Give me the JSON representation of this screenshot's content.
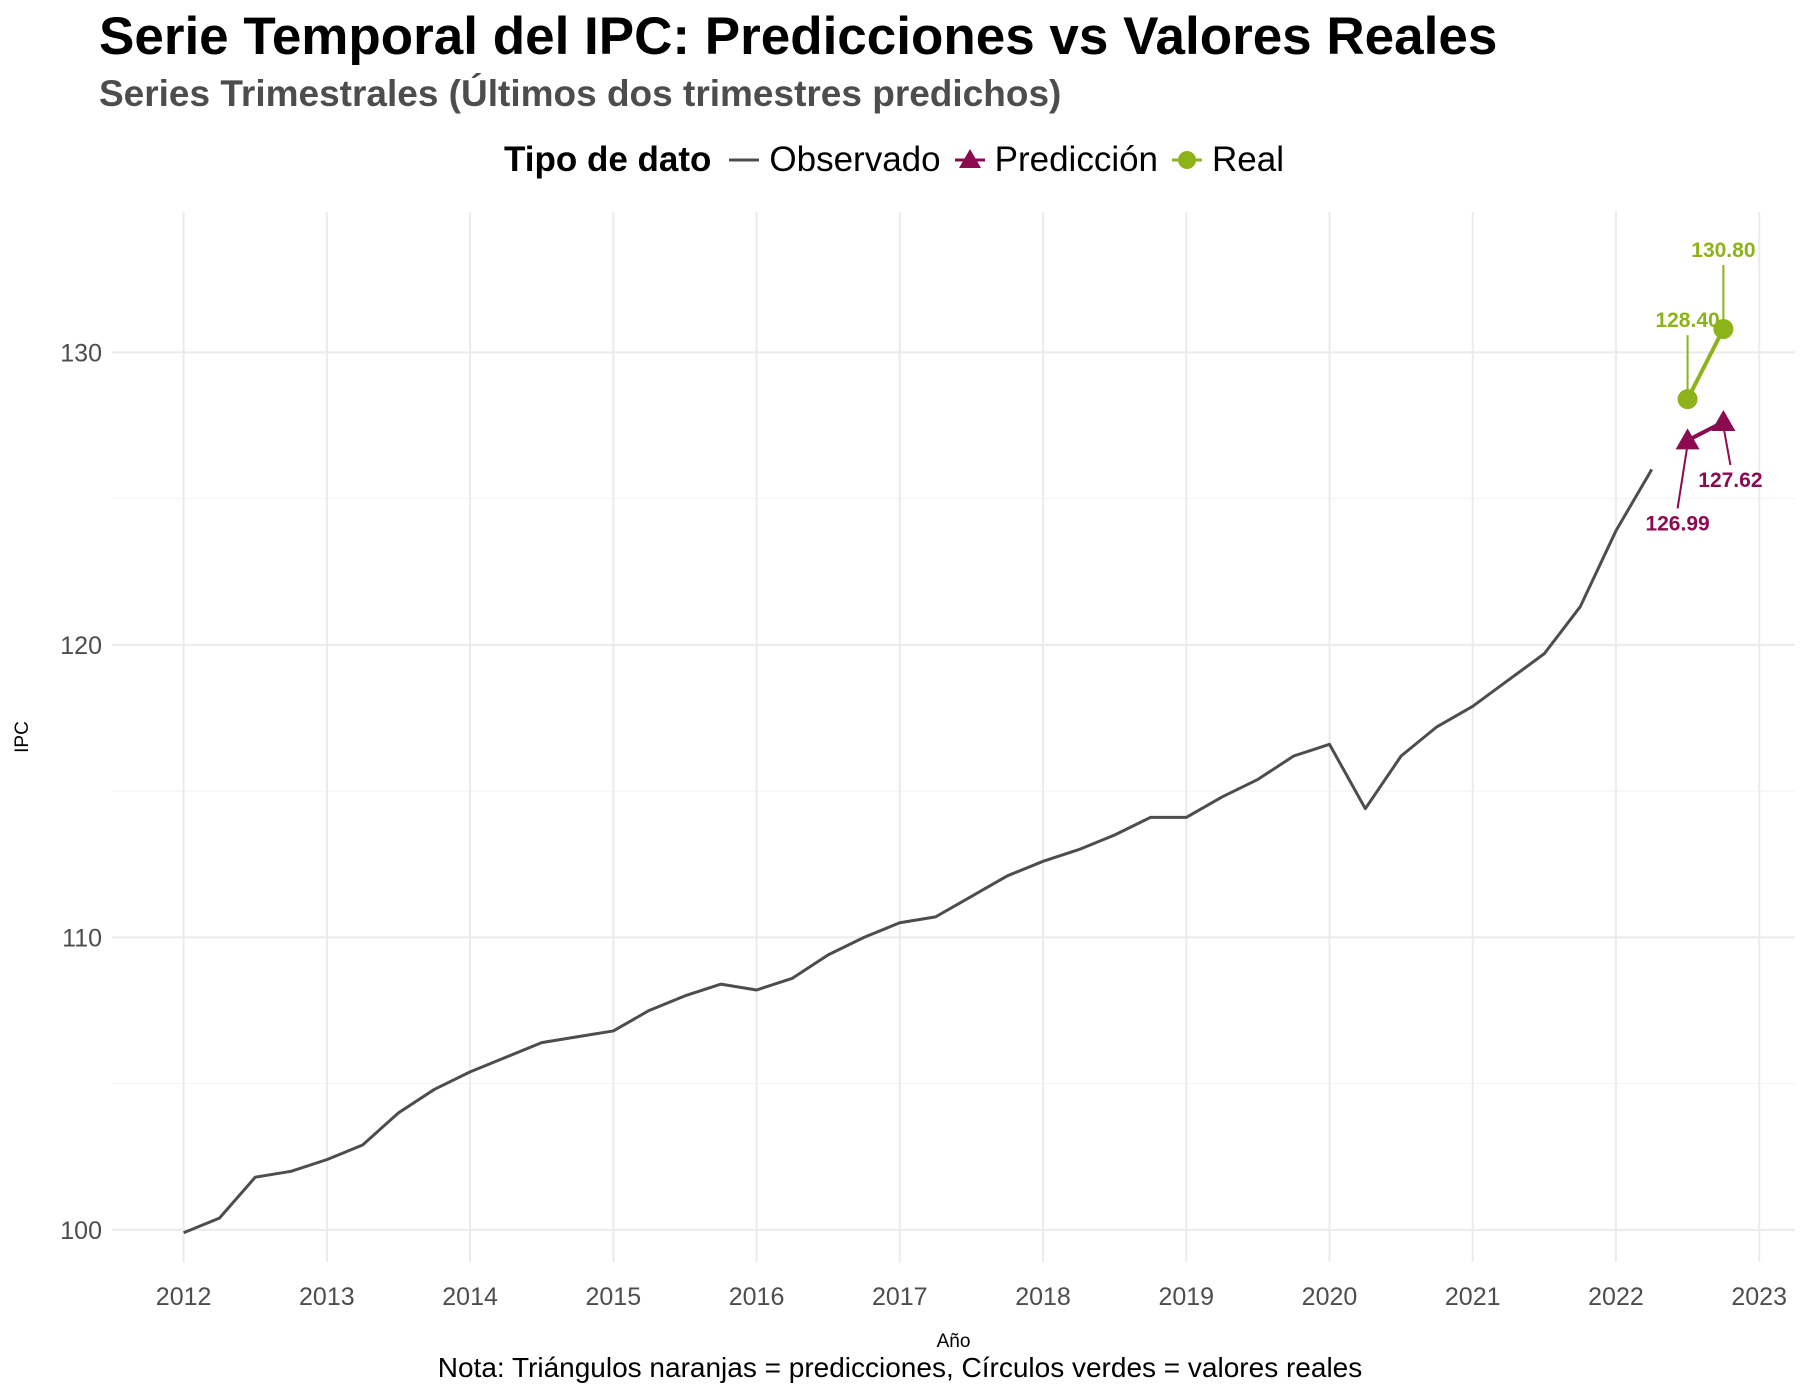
{
  "title": "Serie Temporal del IPC: Predicciones vs Valores Reales",
  "subtitle": "Series Trimestrales (Últimos dos trimestres predichos)",
  "caption": "Nota: Triángulos naranjas = predicciones, Círculos verdes = valores reales",
  "legend": {
    "title": "Tipo de dato",
    "items": [
      {
        "label": "Observado",
        "icon": "line-key-icon",
        "color": "#4d4d4d"
      },
      {
        "label": "Predicción",
        "icon": "triangle-key-icon",
        "color": "#8b0a50"
      },
      {
        "label": "Real",
        "icon": "circle-key-icon",
        "color": "#8db31a"
      }
    ]
  },
  "chart_data": {
    "type": "line",
    "xlabel": "Año",
    "ylabel": "IPC",
    "xlim": [
      2011.5,
      2023.25
    ],
    "ylim": [
      98.9,
      134.8
    ],
    "x_ticks": [
      2012,
      2013,
      2014,
      2015,
      2016,
      2017,
      2018,
      2019,
      2020,
      2021,
      2022,
      2023
    ],
    "y_ticks": [
      100,
      110,
      120,
      130
    ],
    "grid": true,
    "legend_position": "top",
    "series": [
      {
        "name": "Observado",
        "color": "#4d4d4d",
        "marker": "none",
        "x": [
          2012.0,
          2012.25,
          2012.5,
          2012.75,
          2013.0,
          2013.25,
          2013.5,
          2013.75,
          2014.0,
          2014.25,
          2014.5,
          2014.75,
          2015.0,
          2015.25,
          2015.5,
          2015.75,
          2016.0,
          2016.25,
          2016.5,
          2016.75,
          2017.0,
          2017.25,
          2017.5,
          2017.75,
          2018.0,
          2018.25,
          2018.5,
          2018.75,
          2019.0,
          2019.25,
          2019.5,
          2019.75,
          2020.0,
          2020.25,
          2020.5,
          2020.75,
          2021.0,
          2021.25,
          2021.5,
          2021.75,
          2022.0,
          2022.25
        ],
        "values": [
          99.9,
          100.4,
          101.8,
          102.0,
          102.4,
          102.9,
          104.0,
          104.8,
          105.4,
          105.9,
          106.4,
          106.6,
          106.8,
          107.5,
          108.0,
          108.4,
          108.2,
          108.6,
          109.4,
          110.0,
          110.5,
          110.7,
          111.4,
          112.1,
          112.6,
          113.0,
          113.5,
          114.1,
          114.1,
          114.8,
          115.4,
          116.2,
          116.6,
          114.4,
          116.2,
          117.2,
          117.9,
          118.8,
          119.7,
          121.3,
          123.9,
          126.0
        ]
      },
      {
        "name": "Predicción",
        "color": "#8b0a50",
        "marker": "triangle",
        "x": [
          2022.5,
          2022.75
        ],
        "values": [
          126.99,
          127.62
        ],
        "labels": [
          "126.99",
          "127.62"
        ]
      },
      {
        "name": "Real",
        "color": "#8db31a",
        "marker": "circle",
        "x": [
          2022.5,
          2022.75
        ],
        "values": [
          128.4,
          130.8
        ],
        "labels": [
          "128.40",
          "130.80"
        ]
      }
    ]
  }
}
